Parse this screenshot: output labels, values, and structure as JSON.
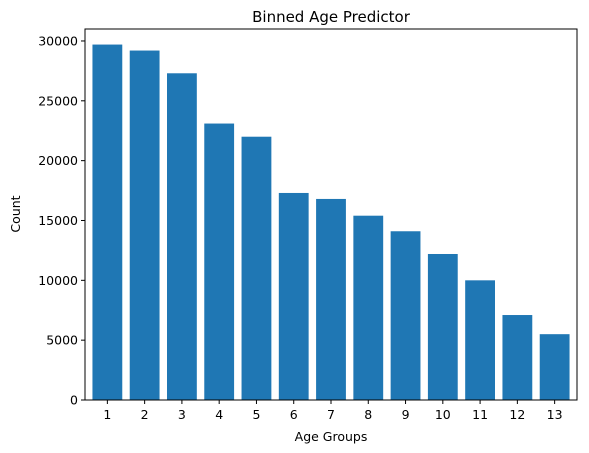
{
  "chart_data": {
    "type": "bar",
    "title": "Binned Age Predictor",
    "xlabel": "Age Groups",
    "ylabel": "Count",
    "categories": [
      "1",
      "2",
      "3",
      "4",
      "5",
      "6",
      "7",
      "8",
      "9",
      "10",
      "11",
      "12",
      "13"
    ],
    "values": [
      29700,
      29200,
      27300,
      23100,
      22000,
      17300,
      16800,
      15400,
      14100,
      12200,
      10000,
      7100,
      5500
    ],
    "ylim": [
      0,
      31000
    ],
    "yticks": [
      0,
      5000,
      10000,
      15000,
      20000,
      25000,
      30000
    ],
    "grid": false,
    "legend": "none",
    "bar_color": "#1f77b4"
  }
}
